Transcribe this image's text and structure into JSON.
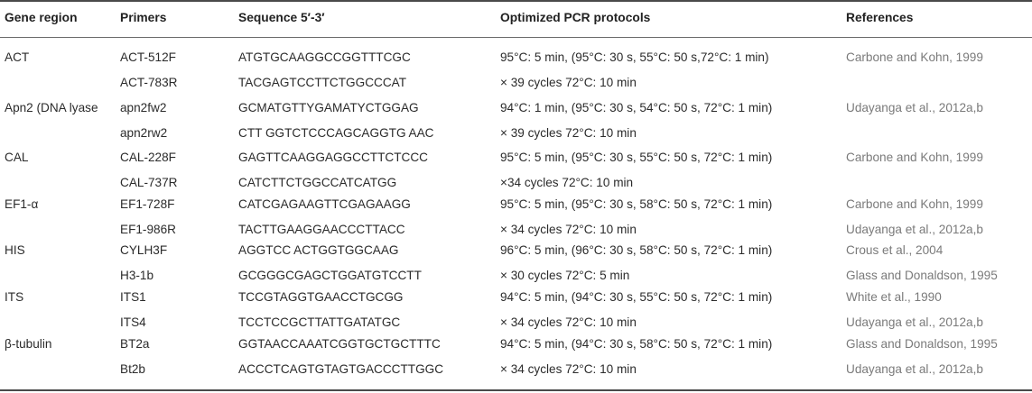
{
  "headers": {
    "gene_region": "Gene region",
    "primers": "Primers",
    "sequence": "Sequence 5′-3′",
    "protocols": "Optimized PCR protocols",
    "references": "References"
  },
  "groups": [
    {
      "gene": "ACT",
      "rows": [
        {
          "primer": "ACT-512F",
          "sequence": "ATGTGCAAGGCCGGTTTCGC",
          "protocol": "95°C: 5 min, (95°C: 30 s, 55°C: 50 s,72°C: 1 min)",
          "reference": "Carbone and Kohn, 1999"
        },
        {
          "primer": "ACT-783R",
          "sequence": "TACGAGTCCTTCTGGCCCAT",
          "protocol": "× 39 cycles 72°C: 10 min",
          "reference": ""
        }
      ]
    },
    {
      "gene": "Apn2 (DNA lyase",
      "rows": [
        {
          "primer": "apn2fw2",
          "sequence": "GCMATGTTYGAMATYCTGGAG",
          "protocol": "94°C: 1 min, (95°C: 30 s, 54°C: 50 s, 72°C: 1 min)",
          "reference": "Udayanga et al., 2012a,b"
        },
        {
          "primer": "apn2rw2",
          "sequence": "CTT GGTCTCCCAGCAGGTG AAC",
          "protocol": "× 39 cycles 72°C: 10 min",
          "reference": ""
        }
      ]
    },
    {
      "gene": "CAL",
      "rows": [
        {
          "primer": "CAL-228F",
          "sequence": "GAGTTCAAGGAGGCCTTCTCCC",
          "protocol": "95°C: 5 min, (95°C: 30 s, 55°C: 50 s, 72°C: 1 min)",
          "reference": "Carbone and Kohn, 1999"
        },
        {
          "primer": "CAL-737R",
          "sequence": "CATCTTCTGGCCATCATGG",
          "protocol": "×34 cycles 72°C: 10 min",
          "reference": ""
        }
      ]
    },
    {
      "gene": "EF1-α",
      "rows": [
        {
          "primer": "EF1-728F",
          "sequence": "CATCGAGAAGTTCGAGAAGG",
          "protocol": "95°C: 5 min, (95°C: 30 s, 58°C: 50 s, 72°C: 1 min)",
          "reference": "Carbone and Kohn, 1999"
        },
        {
          "primer": "EF1-986R",
          "sequence": "TACTTGAAGGAACCCTTACC",
          "protocol": "× 34 cycles 72°C: 10 min",
          "reference": "Udayanga et al., 2012a,b"
        }
      ]
    },
    {
      "gene": "HIS",
      "rows": [
        {
          "primer": "CYLH3F",
          "sequence": "AGGTCC ACTGGTGGCAAG",
          "protocol": "96°C: 5 min, (96°C: 30 s, 58°C: 50 s, 72°C: 1 min)",
          "reference": "Crous et al., 2004"
        },
        {
          "primer": "H3-1b",
          "sequence": "GCGGGCGAGCTGGATGTCCTT",
          "protocol": "× 30 cycles 72°C: 5 min",
          "reference": "Glass and Donaldson, 1995"
        }
      ]
    },
    {
      "gene": "ITS",
      "rows": [
        {
          "primer": "ITS1",
          "sequence": "TCCGTAGGTGAACCTGCGG",
          "protocol": "94°C: 5 min, (94°C: 30 s, 55°C: 50 s, 72°C: 1 min)",
          "reference": "White et al., 1990"
        },
        {
          "primer": "ITS4",
          "sequence": "TCCTCCGCTTATTGATATGC",
          "protocol": "× 34 cycles 72°C: 10 min",
          "reference": "Udayanga et al., 2012a,b"
        }
      ]
    },
    {
      "gene": "β-tubulin",
      "rows": [
        {
          "primer": "BT2a",
          "sequence": "GGTAACCAAATCGGTGCTGCTTTC",
          "protocol": "94°C: 5 min, (94°C: 30 s, 58°C: 50 s, 72°C: 1 min)",
          "reference": "Glass and Donaldson, 1995"
        },
        {
          "primer": "Bt2b",
          "sequence": "ACCCTCAGTGTAGTGACCCTTGGC",
          "protocol": "× 34 cycles 72°C: 10 min",
          "reference": "Udayanga et al., 2012a,b"
        }
      ]
    }
  ]
}
